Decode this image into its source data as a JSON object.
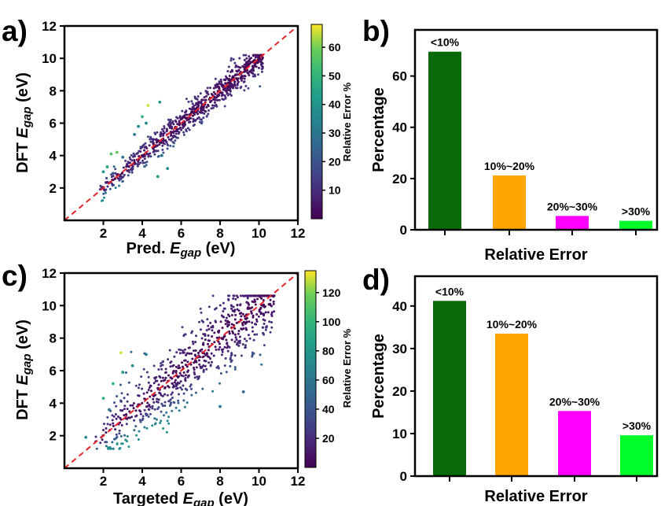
{
  "chart_data": [
    {
      "panel": "a)",
      "type": "scatter",
      "xlabel_prefix": "Pred. ",
      "xlabel_sym": "E",
      "xlabel_sub": "gap",
      "xlabel_suffix": " (eV)",
      "ylabel_prefix": "DFT ",
      "ylabel_sym": "E",
      "ylabel_sub": "gap",
      "ylabel_suffix": " (eV)",
      "xlim": [
        0,
        12
      ],
      "ylim": [
        0,
        12
      ],
      "xticks": [
        2,
        4,
        6,
        8,
        10,
        12
      ],
      "yticks": [
        2,
        4,
        6,
        8,
        10,
        12
      ],
      "reference_line": {
        "type": "y=x",
        "color": "#e8262b",
        "style": "dashed"
      },
      "colorbar": {
        "label": "Relative Error %",
        "range": [
          0,
          68
        ],
        "ticks": [
          10,
          20,
          30,
          40,
          50,
          60
        ],
        "colormap": "viridis"
      },
      "points_summary": {
        "count": 760,
        "x_range": [
          1.8,
          10.2
        ],
        "cluster": "tight around y = x"
      },
      "highlight_points": [
        {
          "x": 4.3,
          "y": 7.1,
          "err": 65
        },
        {
          "x": 2.7,
          "y": 4.2,
          "err": 58
        },
        {
          "x": 2.4,
          "y": 4.1,
          "err": 55
        },
        {
          "x": 4.0,
          "y": 6.4,
          "err": 50
        },
        {
          "x": 4.9,
          "y": 7.3,
          "err": 42
        },
        {
          "x": 3.0,
          "y": 3.9,
          "err": 30
        },
        {
          "x": 3.8,
          "y": 5.8,
          "err": 35
        },
        {
          "x": 5.3,
          "y": 3.2,
          "err": 38
        },
        {
          "x": 4.8,
          "y": 2.7,
          "err": 42
        },
        {
          "x": 2.0,
          "y": 3.0,
          "err": 40
        },
        {
          "x": 2.2,
          "y": 3.3,
          "err": 45
        },
        {
          "x": 4.2,
          "y": 6.0,
          "err": 36
        },
        {
          "x": 3.6,
          "y": 5.3,
          "err": 30
        },
        {
          "x": 5.0,
          "y": 4.0,
          "err": 28
        },
        {
          "x": 2.5,
          "y": 2.9,
          "err": 22
        }
      ]
    },
    {
      "panel": "b)",
      "type": "bar",
      "categories": [
        "<10%",
        "10%~20%",
        "20%~30%",
        ">30%"
      ],
      "values": [
        69.5,
        21.2,
        5.4,
        3.5
      ],
      "colors": [
        "#0a6a0a",
        "#ffa500",
        "#ff00ff",
        "#00ff2a"
      ],
      "xlabel": "Relative Error",
      "ylabel": "Percentage",
      "ylim": [
        0,
        78
      ],
      "yticks": [
        0,
        20,
        40,
        60
      ]
    },
    {
      "panel": "c)",
      "type": "scatter",
      "xlabel_prefix": "Targeted ",
      "xlabel_sym": "E",
      "xlabel_sub": "gap",
      "xlabel_suffix": " (eV)",
      "ylabel_prefix": "DFT ",
      "ylabel_sym": "E",
      "ylabel_sub": "gap",
      "ylabel_suffix": " (eV)",
      "xlim": [
        0,
        12
      ],
      "ylim": [
        0,
        12
      ],
      "xticks": [
        2,
        4,
        6,
        8,
        10,
        12
      ],
      "yticks": [
        2,
        4,
        6,
        8,
        10,
        12
      ],
      "reference_line": {
        "type": "y=x",
        "color": "#e8262b",
        "style": "dashed"
      },
      "colorbar": {
        "label": "Relative Error %",
        "range": [
          0,
          135
        ],
        "ticks": [
          20,
          40,
          60,
          80,
          100,
          120
        ],
        "colormap": "viridis"
      },
      "points_summary": {
        "count": 760,
        "x_range": [
          1.0,
          10.8
        ],
        "cluster": "broad scatter around y = x"
      },
      "highlight_points": [
        {
          "x": 2.9,
          "y": 7.1,
          "err": 130
        },
        {
          "x": 2.5,
          "y": 5.2,
          "err": 100
        },
        {
          "x": 2.0,
          "y": 4.3,
          "err": 95
        },
        {
          "x": 2.3,
          "y": 3.6,
          "err": 60
        },
        {
          "x": 3.0,
          "y": 5.9,
          "err": 80
        },
        {
          "x": 1.1,
          "y": 1.9,
          "err": 70
        },
        {
          "x": 8.0,
          "y": 3.8,
          "err": 55
        },
        {
          "x": 9.2,
          "y": 4.7,
          "err": 50
        },
        {
          "x": 3.5,
          "y": 6.3,
          "err": 75
        },
        {
          "x": 4.2,
          "y": 7.0,
          "err": 65
        }
      ]
    },
    {
      "panel": "d)",
      "type": "bar",
      "categories": [
        "<10%",
        "10%~20%",
        "20%~30%",
        ">30%"
      ],
      "values": [
        41.2,
        33.5,
        15.3,
        9.6
      ],
      "colors": [
        "#0a6a0a",
        "#ffa500",
        "#ff00ff",
        "#00ff2a"
      ],
      "xlabel": "Relative Error",
      "ylabel": "Percentage",
      "ylim": [
        0,
        47
      ],
      "yticks": [
        0,
        10,
        20,
        30,
        40
      ]
    }
  ]
}
